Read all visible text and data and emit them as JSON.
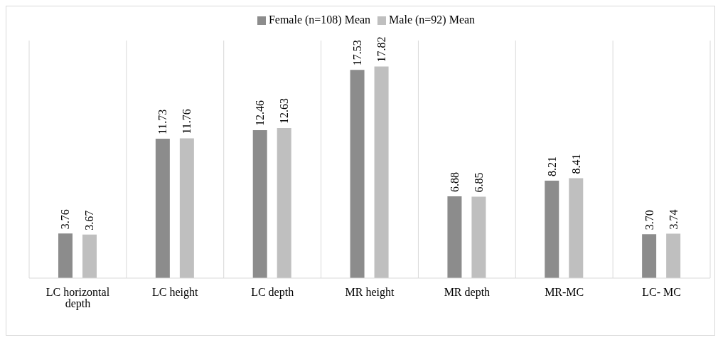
{
  "chart_data": {
    "type": "bar",
    "categories": [
      "LC horizontal depth",
      "LC height",
      "LC depth",
      "MR height",
      "MR depth",
      "MR-MC",
      "LC- MC"
    ],
    "series": [
      {
        "name": "Female (n=108) Mean",
        "color": "#8c8c8c",
        "values": [
          3.76,
          11.73,
          12.46,
          17.53,
          6.88,
          8.21,
          3.7
        ],
        "value_labels": [
          "3.76",
          "11.73",
          "12.46",
          "17.53",
          "6.88",
          "8.21",
          "3.70"
        ]
      },
      {
        "name": "Male (n=92) Mean",
        "color": "#bfbfbf",
        "values": [
          3.67,
          11.76,
          12.63,
          17.82,
          6.85,
          8.41,
          3.74
        ],
        "value_labels": [
          "3.67",
          "11.76",
          "12.63",
          "17.82",
          "6.85",
          "8.41",
          "3.74"
        ]
      }
    ],
    "ylim": [
      0,
      20
    ],
    "grid": "x",
    "legend": "top"
  }
}
